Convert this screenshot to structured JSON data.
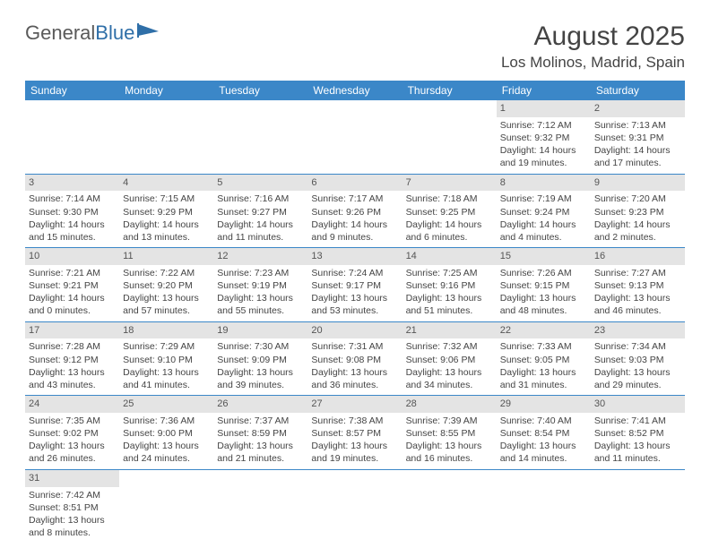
{
  "logo": {
    "text1": "General",
    "text2": "Blue"
  },
  "title": "August 2025",
  "location": "Los Molinos, Madrid, Spain",
  "colors": {
    "header_bg": "#3b87c8",
    "header_text": "#ffffff",
    "daynum_bg": "#e4e4e4",
    "border": "#3b87c8",
    "logo_gray": "#5a5a5a",
    "logo_blue": "#2f6fa8"
  },
  "day_headers": [
    "Sunday",
    "Monday",
    "Tuesday",
    "Wednesday",
    "Thursday",
    "Friday",
    "Saturday"
  ],
  "weeks": [
    [
      null,
      null,
      null,
      null,
      null,
      {
        "n": "1",
        "sr": "7:12 AM",
        "ss": "9:32 PM",
        "dl": "14 hours and 19 minutes."
      },
      {
        "n": "2",
        "sr": "7:13 AM",
        "ss": "9:31 PM",
        "dl": "14 hours and 17 minutes."
      }
    ],
    [
      {
        "n": "3",
        "sr": "7:14 AM",
        "ss": "9:30 PM",
        "dl": "14 hours and 15 minutes."
      },
      {
        "n": "4",
        "sr": "7:15 AM",
        "ss": "9:29 PM",
        "dl": "14 hours and 13 minutes."
      },
      {
        "n": "5",
        "sr": "7:16 AM",
        "ss": "9:27 PM",
        "dl": "14 hours and 11 minutes."
      },
      {
        "n": "6",
        "sr": "7:17 AM",
        "ss": "9:26 PM",
        "dl": "14 hours and 9 minutes."
      },
      {
        "n": "7",
        "sr": "7:18 AM",
        "ss": "9:25 PM",
        "dl": "14 hours and 6 minutes."
      },
      {
        "n": "8",
        "sr": "7:19 AM",
        "ss": "9:24 PM",
        "dl": "14 hours and 4 minutes."
      },
      {
        "n": "9",
        "sr": "7:20 AM",
        "ss": "9:23 PM",
        "dl": "14 hours and 2 minutes."
      }
    ],
    [
      {
        "n": "10",
        "sr": "7:21 AM",
        "ss": "9:21 PM",
        "dl": "14 hours and 0 minutes."
      },
      {
        "n": "11",
        "sr": "7:22 AM",
        "ss": "9:20 PM",
        "dl": "13 hours and 57 minutes."
      },
      {
        "n": "12",
        "sr": "7:23 AM",
        "ss": "9:19 PM",
        "dl": "13 hours and 55 minutes."
      },
      {
        "n": "13",
        "sr": "7:24 AM",
        "ss": "9:17 PM",
        "dl": "13 hours and 53 minutes."
      },
      {
        "n": "14",
        "sr": "7:25 AM",
        "ss": "9:16 PM",
        "dl": "13 hours and 51 minutes."
      },
      {
        "n": "15",
        "sr": "7:26 AM",
        "ss": "9:15 PM",
        "dl": "13 hours and 48 minutes."
      },
      {
        "n": "16",
        "sr": "7:27 AM",
        "ss": "9:13 PM",
        "dl": "13 hours and 46 minutes."
      }
    ],
    [
      {
        "n": "17",
        "sr": "7:28 AM",
        "ss": "9:12 PM",
        "dl": "13 hours and 43 minutes."
      },
      {
        "n": "18",
        "sr": "7:29 AM",
        "ss": "9:10 PM",
        "dl": "13 hours and 41 minutes."
      },
      {
        "n": "19",
        "sr": "7:30 AM",
        "ss": "9:09 PM",
        "dl": "13 hours and 39 minutes."
      },
      {
        "n": "20",
        "sr": "7:31 AM",
        "ss": "9:08 PM",
        "dl": "13 hours and 36 minutes."
      },
      {
        "n": "21",
        "sr": "7:32 AM",
        "ss": "9:06 PM",
        "dl": "13 hours and 34 minutes."
      },
      {
        "n": "22",
        "sr": "7:33 AM",
        "ss": "9:05 PM",
        "dl": "13 hours and 31 minutes."
      },
      {
        "n": "23",
        "sr": "7:34 AM",
        "ss": "9:03 PM",
        "dl": "13 hours and 29 minutes."
      }
    ],
    [
      {
        "n": "24",
        "sr": "7:35 AM",
        "ss": "9:02 PM",
        "dl": "13 hours and 26 minutes."
      },
      {
        "n": "25",
        "sr": "7:36 AM",
        "ss": "9:00 PM",
        "dl": "13 hours and 24 minutes."
      },
      {
        "n": "26",
        "sr": "7:37 AM",
        "ss": "8:59 PM",
        "dl": "13 hours and 21 minutes."
      },
      {
        "n": "27",
        "sr": "7:38 AM",
        "ss": "8:57 PM",
        "dl": "13 hours and 19 minutes."
      },
      {
        "n": "28",
        "sr": "7:39 AM",
        "ss": "8:55 PM",
        "dl": "13 hours and 16 minutes."
      },
      {
        "n": "29",
        "sr": "7:40 AM",
        "ss": "8:54 PM",
        "dl": "13 hours and 14 minutes."
      },
      {
        "n": "30",
        "sr": "7:41 AM",
        "ss": "8:52 PM",
        "dl": "13 hours and 11 minutes."
      }
    ],
    [
      {
        "n": "31",
        "sr": "7:42 AM",
        "ss": "8:51 PM",
        "dl": "13 hours and 8 minutes."
      },
      null,
      null,
      null,
      null,
      null,
      null
    ]
  ],
  "labels": {
    "sunrise": "Sunrise: ",
    "sunset": "Sunset: ",
    "daylight": "Daylight: "
  }
}
